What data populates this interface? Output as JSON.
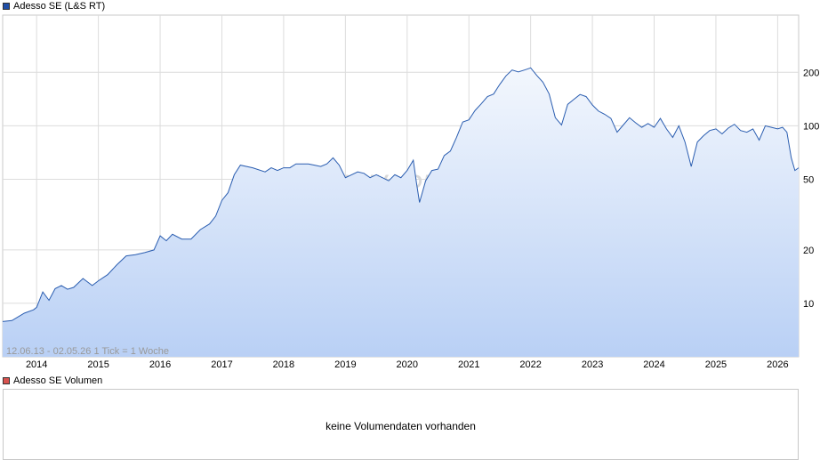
{
  "price_panel": {
    "legend_label": "Adesso SE (L&S RT)",
    "legend_color": "#1f4fa8",
    "info_text": "12.06.13 - 02.05.26   1 Tick = 1 Woche",
    "watermark": "ARIVA.DE"
  },
  "volume_panel": {
    "legend_label": "Adesso SE Volumen",
    "legend_color": "#d9534f",
    "message": "keine Volumendaten vorhanden"
  },
  "colors": {
    "line": "#2a5db0",
    "area_top": "#f3f7fd",
    "area_bottom": "#b9d0f5",
    "grid": "#dcdcdc",
    "border": "#c8c8c8"
  },
  "chart_data": {
    "type": "area",
    "title": "Adesso SE (L&S RT)",
    "y_scale": "log",
    "ylim": [
      5,
      420
    ],
    "y_ticks": [
      10,
      20,
      50,
      100,
      200
    ],
    "x_range": [
      2013.45,
      2026.34
    ],
    "x_tick_labels": [
      "2014",
      "2015",
      "2016",
      "2017",
      "2018",
      "2019",
      "2020",
      "2021",
      "2022",
      "2023",
      "2024",
      "2025",
      "2026"
    ],
    "grid": true,
    "series": [
      {
        "name": "Adesso SE (L&S RT)",
        "x": [
          2013.45,
          2013.6,
          2013.8,
          2013.95,
          2014.0,
          2014.1,
          2014.2,
          2014.3,
          2014.4,
          2014.5,
          2014.6,
          2014.75,
          2014.9,
          2015.0,
          2015.15,
          2015.3,
          2015.45,
          2015.6,
          2015.75,
          2015.9,
          2016.0,
          2016.1,
          2016.2,
          2016.35,
          2016.5,
          2016.65,
          2016.8,
          2016.9,
          2017.0,
          2017.1,
          2017.2,
          2017.3,
          2017.5,
          2017.7,
          2017.8,
          2017.9,
          2018.0,
          2018.1,
          2018.2,
          2018.4,
          2018.5,
          2018.6,
          2018.7,
          2018.8,
          2018.9,
          2019.0,
          2019.1,
          2019.2,
          2019.3,
          2019.4,
          2019.5,
          2019.6,
          2019.7,
          2019.8,
          2019.9,
          2020.0,
          2020.1,
          2020.15,
          2020.2,
          2020.3,
          2020.4,
          2020.5,
          2020.6,
          2020.7,
          2020.8,
          2020.9,
          2021.0,
          2021.1,
          2021.2,
          2021.3,
          2021.4,
          2021.5,
          2021.6,
          2021.7,
          2021.8,
          2021.9,
          2022.0,
          2022.1,
          2022.2,
          2022.3,
          2022.4,
          2022.5,
          2022.6,
          2022.7,
          2022.8,
          2022.9,
          2023.0,
          2023.1,
          2023.2,
          2023.3,
          2023.4,
          2023.5,
          2023.6,
          2023.7,
          2023.8,
          2023.9,
          2024.0,
          2024.1,
          2024.2,
          2024.3,
          2024.4,
          2024.5,
          2024.6,
          2024.7,
          2024.8,
          2024.9,
          2025.0,
          2025.1,
          2025.2,
          2025.3,
          2025.4,
          2025.5,
          2025.6,
          2025.7,
          2025.8,
          2025.9,
          2026.0,
          2026.08,
          2026.15,
          2026.22,
          2026.28,
          2026.34
        ],
        "values": [
          7.9,
          8.0,
          8.8,
          9.2,
          9.5,
          11.6,
          10.4,
          12.1,
          12.6,
          12.0,
          12.3,
          13.8,
          12.6,
          13.4,
          14.5,
          16.5,
          18.5,
          18.8,
          19.3,
          20.0,
          24.0,
          22.5,
          24.5,
          23.0,
          23.0,
          26.0,
          28.0,
          31.0,
          38.0,
          42.0,
          53.0,
          60.0,
          58.0,
          55.0,
          58.0,
          56.0,
          58.0,
          58.0,
          61.0,
          61.0,
          60.0,
          59.0,
          61.0,
          66.0,
          60.0,
          51.0,
          53.0,
          55.0,
          54.0,
          51.0,
          53.0,
          51.0,
          49.0,
          53.0,
          51.0,
          56.0,
          64.0,
          48.0,
          37.0,
          49.0,
          56.0,
          57.0,
          68.0,
          72.0,
          86.0,
          105.0,
          108.0,
          122.0,
          133.0,
          146.0,
          151.0,
          171.0,
          191.0,
          206.0,
          201.0,
          206.0,
          212.0,
          192.0,
          176.0,
          151.0,
          111.0,
          101.0,
          132.0,
          141.0,
          150.0,
          146.0,
          131.0,
          121.0,
          116.0,
          110.0,
          92.0,
          101.0,
          111.0,
          104.0,
          98.0,
          103.0,
          98.0,
          110.0,
          96.0,
          86.0,
          100.0,
          81.0,
          59.0,
          81.0,
          88.0,
          94.0,
          96.0,
          90.0,
          97.0,
          102.0,
          94.0,
          92.0,
          96.0,
          83.0,
          100.0,
          98.0,
          96.0,
          98.0,
          92.0,
          66.0,
          56.0,
          58.0
        ]
      }
    ]
  }
}
